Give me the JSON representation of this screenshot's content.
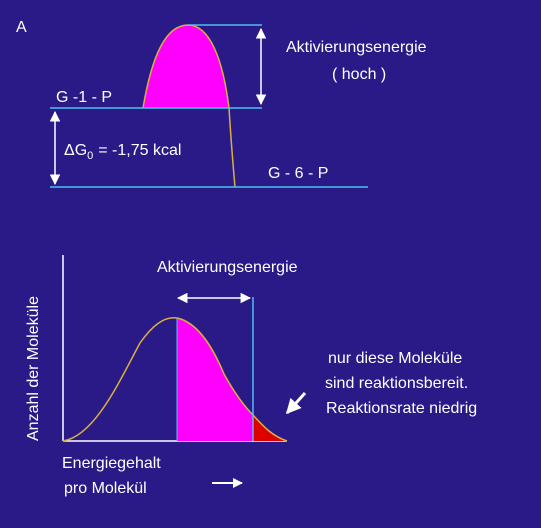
{
  "panel_top": {
    "letter": "A",
    "state_high_label": "G -1 - P",
    "state_low_label": "G - 6 - P",
    "activation_label_line1": "Aktivierungsenergie",
    "activation_label_line2": "( hoch )",
    "delta_g_symbol": "ΔG",
    "delta_g_subscript": "0",
    "delta_g_value": "= -1,75 kcal"
  },
  "panel_bottom": {
    "y_axis_label": "Anzahl der Moleküle",
    "x_axis_label_line1": "Energiegehalt",
    "x_axis_label_line2": "pro Molekül",
    "activation_label": "Aktivierungsenergie",
    "note_line1": "nur diese Moleküle",
    "note_line2": "sind reaktionsbereit.",
    "note_line3": "Reaktionsrate niedrig"
  },
  "colors": {
    "background": "#2a1a88",
    "curve": "#d8b040",
    "fill_magenta": "#ff00ff",
    "fill_red": "#dd0000",
    "level_line": "#50c0f0",
    "arrow": "#ffffff"
  }
}
